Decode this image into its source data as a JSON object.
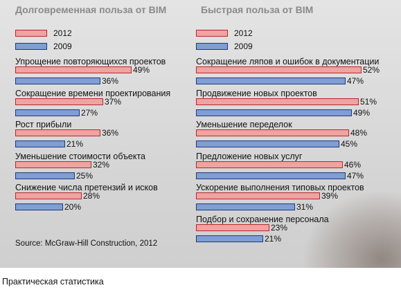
{
  "colors": {
    "s2012_fill": "#f0a3a1",
    "s2012_border": "#b8262b",
    "s2009_fill": "#7f9fd4",
    "s2009_border": "#24357a"
  },
  "chart_data": [
    {
      "type": "bar",
      "orientation": "horizontal",
      "title": "Долговременная польза от BIM",
      "legend": [
        "2012",
        "2009"
      ],
      "categories": [
        "Упрощение повторяющихся проектов",
        "Сокращение времени проектирования",
        "Рост прибыли",
        "Уменьшение стоимости объекта",
        "Снижение числа претензий и исков"
      ],
      "series": [
        {
          "name": "2012",
          "values": [
            49,
            37,
            36,
            32,
            28
          ]
        },
        {
          "name": "2009",
          "values": [
            36,
            27,
            21,
            25,
            20
          ]
        }
      ],
      "value_suffix": "%"
    },
    {
      "type": "bar",
      "orientation": "horizontal",
      "title": "Быстрая польза от BIM",
      "legend": [
        "2012",
        "2009"
      ],
      "categories": [
        "Сокращение ляпов и ошибок в документации",
        "Продвижение новых проектов",
        "Уменьшение переделок",
        "Предложение новых услуг",
        "Ускорение выполнения типовых проектов",
        "Подбор и сохранение персонала"
      ],
      "series": [
        {
          "name": "2012",
          "values": [
            52,
            51,
            48,
            46,
            39,
            23
          ]
        },
        {
          "name": "2009",
          "values": [
            47,
            49,
            45,
            47,
            31,
            21
          ]
        }
      ],
      "value_suffix": "%"
    }
  ],
  "source": "Source: McGraw-Hill Construction, 2012",
  "caption": "Практическая статистика"
}
